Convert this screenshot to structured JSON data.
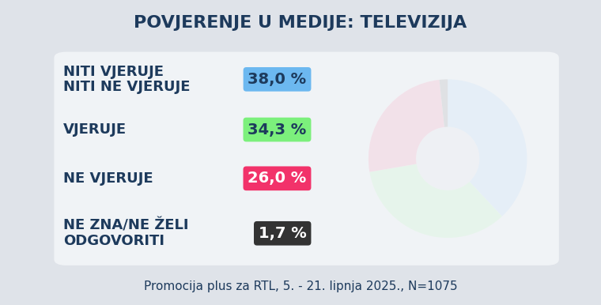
{
  "chart_data": {
    "type": "pie",
    "title": "POVJERENJE U MEDIJE: TELEVIZIJA",
    "categories": [
      "NITI VJERUJE\nNITI NE VJERUJE",
      "VJERUJE",
      "NE VJERUJE",
      "NE ZNA/NE ŽELI\nODGOVORITI"
    ],
    "values": [
      38.0,
      34.3,
      26.0,
      1.7
    ],
    "value_labels": [
      "38,0 %",
      "34,3 %",
      "26,0 %",
      "1,7 %"
    ],
    "colors": [
      "#6cb8f0",
      "#7cf07c",
      "#f2326a",
      "#333333"
    ],
    "data_labels": true,
    "source": "Promocija plus za RTL, 5. - 21. lipnja 2025., N=1075"
  }
}
